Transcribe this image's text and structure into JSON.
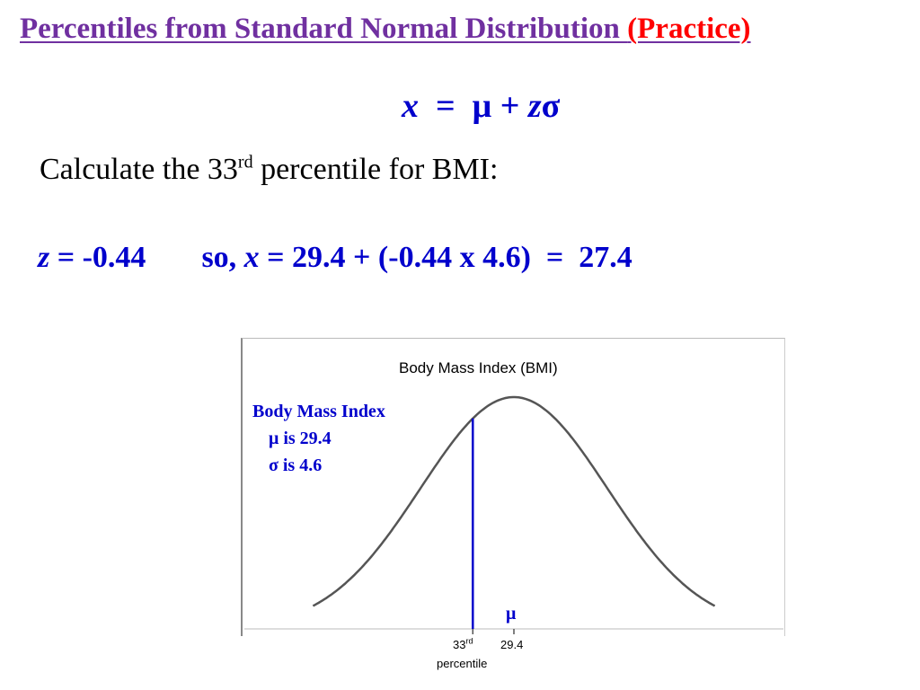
{
  "slide": {
    "title_main": "Percentiles from Standard Normal Distribution ",
    "title_practice": "(Practice)",
    "formula": {
      "lhs": "x",
      "eq": "  =  ",
      "mu": "μ + ",
      "z": "z",
      "sigma": "σ"
    },
    "question": {
      "before": "Calculate the 33",
      "sup": "rd",
      "after": " percentile for BMI:"
    },
    "answer": {
      "z_var": "z",
      "z_value": " = -0.44",
      "so": "so, ",
      "x_var": "x",
      "calc": " = 29.4 + (-0.44 x 4.6)  =  27.4"
    }
  },
  "figure": {
    "title": "Body Mass Index (BMI)",
    "legend": {
      "heading": "Body Mass Index",
      "mu_line": "μ is 29.4",
      "sigma_line": "σ is 4.6"
    },
    "mu_symbol": "μ",
    "mean_value": 29.4,
    "sd_value": 4.6,
    "percentile_marker_z": -0.44,
    "tick_mean_label": "29.4",
    "tick_percentile_number": "33",
    "tick_percentile_sup": "rd",
    "tick_percentile_word": "percentile",
    "colors": {
      "curve": "#555555",
      "marker": "#0000cc",
      "title": "#7030a0",
      "practice": "#ff0000"
    }
  }
}
